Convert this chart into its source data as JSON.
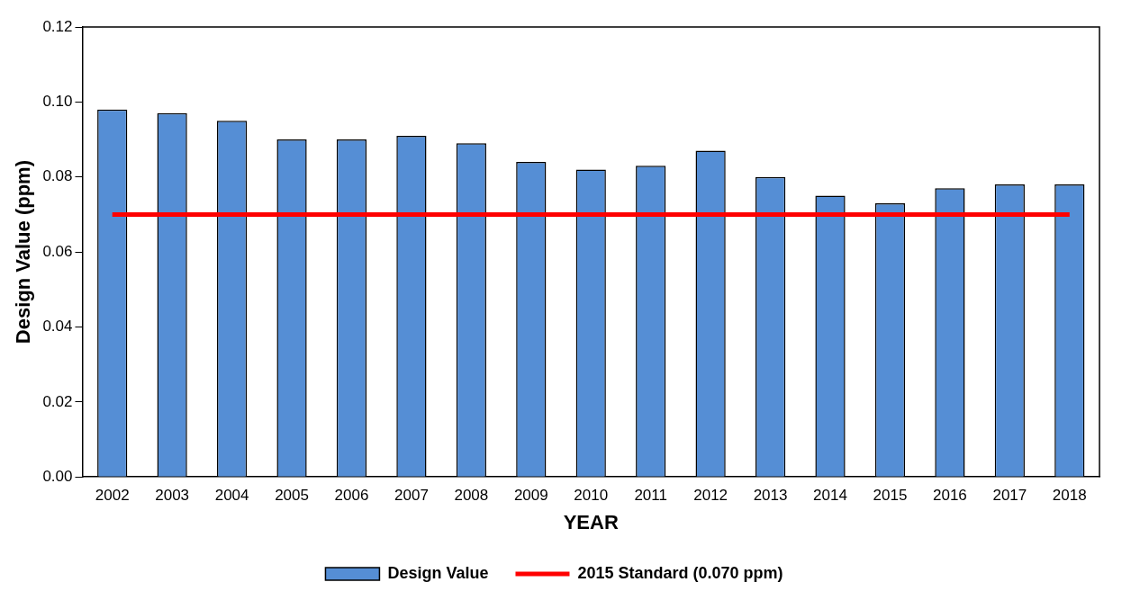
{
  "chart_data": {
    "type": "bar",
    "xlabel": "YEAR",
    "ylabel": "Design Value (ppm)",
    "categories": [
      "2002",
      "2003",
      "2004",
      "2005",
      "2006",
      "2007",
      "2008",
      "2009",
      "2010",
      "2011",
      "2012",
      "2013",
      "2014",
      "2015",
      "2016",
      "2017",
      "2018"
    ],
    "series": [
      {
        "name": "Design Value",
        "color": "#558ed5",
        "values": [
          0.098,
          0.097,
          0.095,
          0.09,
          0.09,
          0.091,
          0.089,
          0.084,
          0.082,
          0.083,
          0.087,
          0.08,
          0.075,
          0.073,
          0.077,
          0.078,
          0.078
        ]
      },
      {
        "name": "2015 Standard (0.070 ppm)",
        "type": "line",
        "color": "#ff0000",
        "values": [
          0.07,
          0.07,
          0.07,
          0.07,
          0.07,
          0.07,
          0.07,
          0.07,
          0.07,
          0.07,
          0.07,
          0.07,
          0.07,
          0.07,
          0.07,
          0.07,
          0.07
        ]
      }
    ],
    "ylim": [
      0,
      0.12
    ],
    "yticks": [
      {
        "value": 0,
        "label": "0.00"
      },
      {
        "value": 0.02,
        "label": "0.02"
      },
      {
        "value": 0.04,
        "label": "0.04"
      },
      {
        "value": 0.06,
        "label": "0.06"
      },
      {
        "value": 0.08,
        "label": "0.08"
      },
      {
        "value": 0.1,
        "label": "0.10"
      },
      {
        "value": 0.12,
        "label": "0.12"
      }
    ],
    "grid": false,
    "legend": "bottom"
  }
}
